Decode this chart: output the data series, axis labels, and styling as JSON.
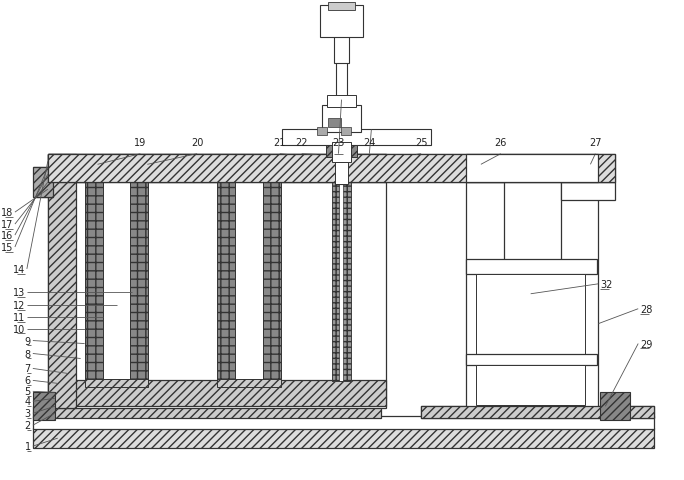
{
  "fig_width": 6.84,
  "fig_height": 4.81,
  "dpi": 100,
  "bg_color": "#ffffff",
  "ec": "#333333",
  "lw_main": 0.9,
  "lw_thin": 0.6,
  "label_fs": 7.0,
  "label_color": "#222222"
}
